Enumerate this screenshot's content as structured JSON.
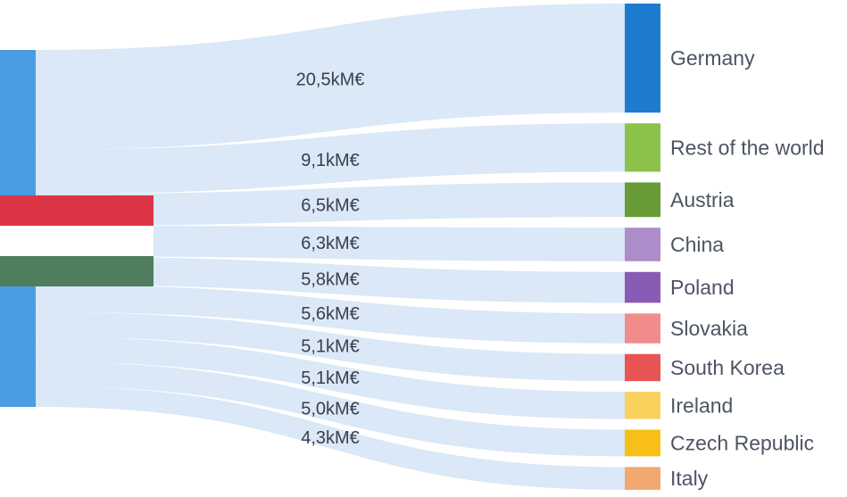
{
  "chart_data": {
    "type": "sankey",
    "source": {
      "flag_colors": {
        "red": "#dc3545",
        "white": "#ffffff",
        "green": "#4f7e5e"
      },
      "node_color": "#4a9de2"
    },
    "unit": "kM€",
    "flows": [
      {
        "target": "Germany",
        "value": 20.5,
        "label": "20,5kM€",
        "color": "#1d7ccf"
      },
      {
        "target": "Rest of the world",
        "value": 9.1,
        "label": "9,1kM€",
        "color": "#8bc34a"
      },
      {
        "target": "Austria",
        "value": 6.5,
        "label": "6,5kM€",
        "color": "#689a36"
      },
      {
        "target": "China",
        "value": 6.3,
        "label": "6,3kM€",
        "color": "#ac8dc9"
      },
      {
        "target": "Poland",
        "value": 5.8,
        "label": "5,8kM€",
        "color": "#8a5bb5"
      },
      {
        "target": "Slovakia",
        "value": 5.6,
        "label": "5,6kM€",
        "color": "#f08c8c"
      },
      {
        "target": "South Korea",
        "value": 5.1,
        "label": "5,1kM€",
        "color": "#e85454"
      },
      {
        "target": "Ireland",
        "value": 5.1,
        "label": "5,1kM€",
        "color": "#f8d05c"
      },
      {
        "target": "Czech Republic",
        "value": 5.0,
        "label": "5,0kM€",
        "color": "#f8c016"
      },
      {
        "target": "Italy",
        "value": 4.3,
        "label": "4,3kM€",
        "color": "#f3a872"
      }
    ]
  }
}
